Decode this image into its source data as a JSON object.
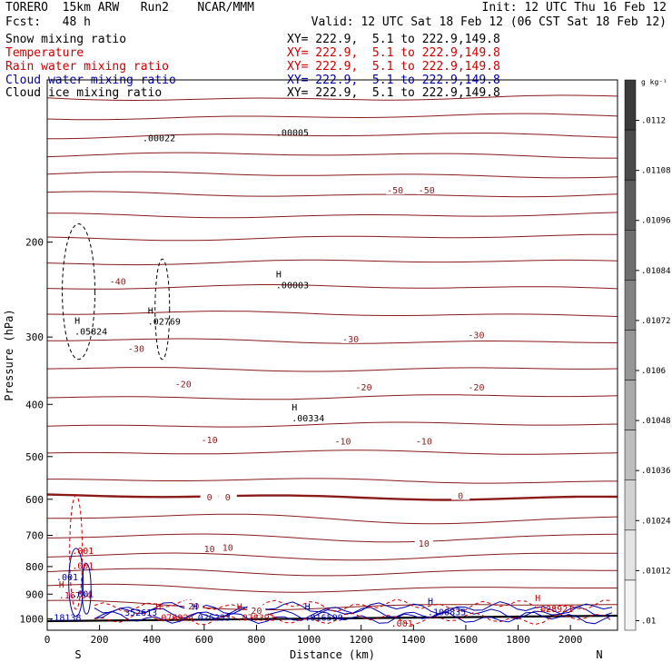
{
  "header": {
    "left_line1": "TORERO  15km ARW   Run2    NCAR/MMM",
    "left_line2": "Fcst:   48 h",
    "init": "Init: 12 UTC Thu 16 Feb 12",
    "valid": "Valid: 12 UTC Sat 18 Feb 12 (06 CST Sat 18 Feb 12)",
    "fields": [
      {
        "name": "Snow mixing ratio",
        "xy": "XY= 222.9,  5.1 to 222.9,149.8",
        "color": "#000000"
      },
      {
        "name": "Temperature",
        "xy": "XY= 222.9,  5.1 to 222.9,149.8",
        "color": "#cc0000"
      },
      {
        "name": "Rain water mixing ratio",
        "xy": "XY= 222.9,  5.1 to 222.9,149.8",
        "color": "#cc0000"
      },
      {
        "name": "Cloud water mixing ratio",
        "xy": "XY= 222.9,  5.1 to 222.9,149.8",
        "color": "#0000aa"
      },
      {
        "name": "Cloud ice mixing ratio",
        "xy": "XY= 222.9,  5.1 to 222.9,149.8",
        "color": "#000000"
      }
    ]
  },
  "colorbar": {
    "units": "g kg⁻¹",
    "labels": [
      ".0112",
      ".01108",
      ".01096",
      ".01084",
      ".01072",
      ".0106",
      ".01048",
      ".01036",
      ".01024",
      ".01012",
      ".01"
    ],
    "shades": [
      "#3a3a3a",
      "#4a4a4a",
      "#5c5c5c",
      "#6e6e6e",
      "#828282",
      "#969696",
      "#aaaaaa",
      "#bebebe",
      "#d2d2d2",
      "#e4e4e4",
      "#f4f4f4"
    ]
  },
  "chart_data": {
    "type": "contour",
    "xlabel": "Distance (km)",
    "ylabel": "Pressure (hPa)",
    "xlim": [
      0,
      2180
    ],
    "ylim": [
      1050,
      100
    ],
    "y_scale": "log",
    "x_ticks": [
      0,
      200,
      400,
      600,
      800,
      1000,
      1200,
      1400,
      1600,
      1800,
      2000
    ],
    "y_ticks": [
      200,
      300,
      400,
      500,
      600,
      700,
      800,
      900,
      1000
    ],
    "end_labels": {
      "left": "S",
      "right": "N"
    },
    "temperature_labels": [
      {
        "text": "-50",
        "x": 1330,
        "p": 160
      },
      {
        "text": "-50",
        "x": 1450,
        "p": 160
      },
      {
        "text": "-40",
        "x": 270,
        "p": 236
      },
      {
        "text": "-30",
        "x": 340,
        "p": 315
      },
      {
        "text": "-30",
        "x": 1160,
        "p": 302
      },
      {
        "text": "-30",
        "x": 1640,
        "p": 297
      },
      {
        "text": "-20",
        "x": 520,
        "p": 366
      },
      {
        "text": "-20",
        "x": 1210,
        "p": 371
      },
      {
        "text": "-20",
        "x": 1640,
        "p": 371
      },
      {
        "text": "-10",
        "x": 620,
        "p": 465
      },
      {
        "text": "-10",
        "x": 1130,
        "p": 468
      },
      {
        "text": "-10",
        "x": 1440,
        "p": 468
      },
      {
        "text": "0",
        "x": 620,
        "p": 594
      },
      {
        "text": "0",
        "x": 690,
        "p": 594
      },
      {
        "text": "0",
        "x": 1580,
        "p": 590
      },
      {
        "text": "10",
        "x": 620,
        "p": 740
      },
      {
        "text": "10",
        "x": 690,
        "p": 736
      },
      {
        "text": "10",
        "x": 1440,
        "p": 723
      },
      {
        "text": "20",
        "x": 560,
        "p": 945
      },
      {
        "text": "20",
        "x": 800,
        "p": 965
      }
    ],
    "maxima": [
      {
        "label": "H",
        "value": ".05824",
        "x": 160,
        "p": 290,
        "color": "#000000"
      },
      {
        "label": "H",
        "value": ".02769",
        "x": 440,
        "p": 278,
        "color": "#000000"
      },
      {
        "label": "H",
        "value": ".00003",
        "x": 930,
        "p": 238,
        "color": "#000000"
      },
      {
        "label": "H",
        "value": ".00334",
        "x": 990,
        "p": 420,
        "color": "#000000"
      },
      {
        "label": "",
        "value": ".00022",
        "x": 420,
        "p": 127,
        "color": "#000000"
      },
      {
        "label": "",
        "value": ".00005",
        "x": 930,
        "p": 124,
        "color": "#000000"
      },
      {
        "label": "H",
        "value": ".16764",
        "x": 100,
        "p": 895,
        "color": "#cc0000"
      },
      {
        "label": "",
        "value": ".001",
        "x": 150,
        "p": 740,
        "color": "#cc0000"
      },
      {
        "label": "",
        "value": ".001",
        "x": 150,
        "p": 790,
        "color": "#cc0000"
      },
      {
        "label": "",
        "value": ".001",
        "x": 90,
        "p": 828,
        "color": "#0000aa"
      },
      {
        "label": "",
        "value": ".001",
        "x": 150,
        "p": 890,
        "color": "#0000aa"
      },
      {
        "label": "",
        "value": ".352613",
        "x": 330,
        "p": 965,
        "color": "#0000aa"
      },
      {
        "label": "H",
        "value": ".076924",
        "x": 470,
        "p": 985,
        "color": "#cc0000"
      },
      {
        "label": "H",
        "value": ".026233",
        "x": 610,
        "p": 985,
        "color": "#0000aa"
      },
      {
        "label": "H",
        "value": ".078391",
        "x": 780,
        "p": 985,
        "color": "#cc0000"
      },
      {
        "label": "H",
        "value": ".016599",
        "x": 1040,
        "p": 985,
        "color": "#0000aa"
      },
      {
        "label": "",
        "value": ".001",
        "x": 1370,
        "p": 1010,
        "color": "#cc0000"
      },
      {
        "label": "H",
        "value": ".100835",
        "x": 1510,
        "p": 962,
        "color": "#0000aa"
      },
      {
        "label": "H",
        "value": ".028921",
        "x": 1920,
        "p": 950,
        "color": "#cc0000"
      },
      {
        "label": "",
        "value": ".18138",
        "x": 60,
        "p": 985,
        "color": "#0000aa"
      }
    ]
  }
}
